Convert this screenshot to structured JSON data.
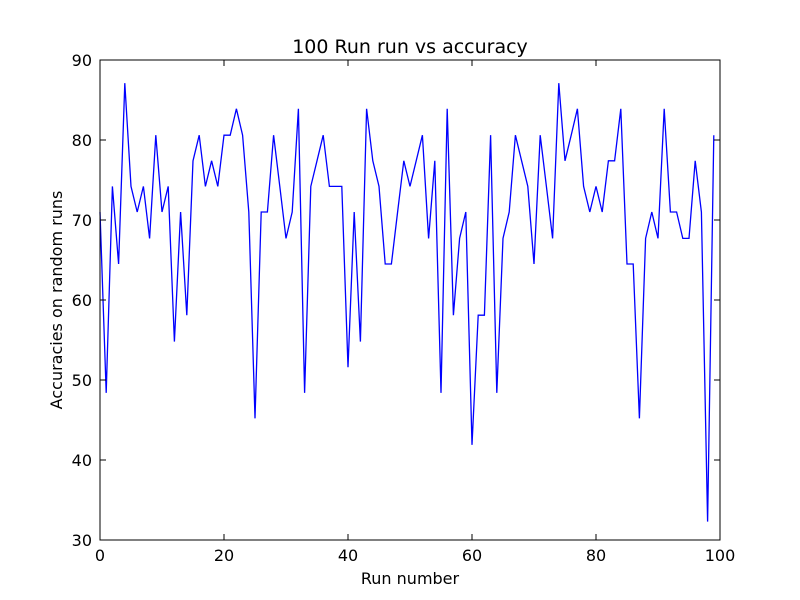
{
  "chart_data": {
    "type": "line",
    "title": "100 Run run vs accuracy",
    "xlabel": "Run number",
    "ylabel": "Accuracies on random runs",
    "xlim": [
      0,
      100
    ],
    "ylim": [
      30,
      90
    ],
    "xticks": [
      "0",
      "20",
      "40",
      "60",
      "80",
      "100"
    ],
    "yticks": [
      "30",
      "40",
      "50",
      "60",
      "70",
      "80",
      "90"
    ],
    "grid": false,
    "series": [
      {
        "color": "#0000ff",
        "x": [
          0,
          1,
          2,
          3,
          4,
          5,
          6,
          7,
          8,
          9,
          10,
          11,
          12,
          13,
          14,
          15,
          16,
          17,
          18,
          19,
          20,
          21,
          22,
          23,
          24,
          25,
          26,
          27,
          28,
          29,
          30,
          31,
          32,
          33,
          34,
          35,
          36,
          37,
          38,
          39,
          40,
          41,
          42,
          43,
          44,
          45,
          46,
          47,
          48,
          49,
          50,
          51,
          52,
          53,
          54,
          55,
          56,
          57,
          58,
          59,
          60,
          61,
          62,
          63,
          64,
          65,
          66,
          67,
          68,
          69,
          70,
          71,
          72,
          73,
          74,
          75,
          76,
          77,
          78,
          79,
          80,
          81,
          82,
          83,
          84,
          85,
          86,
          87,
          88,
          89,
          90,
          91,
          92,
          93,
          94,
          95,
          96,
          97,
          98,
          99
        ],
        "y": [
          71,
          48.4,
          74.2,
          64.5,
          87.1,
          74.2,
          71,
          74.2,
          67.7,
          80.6,
          71,
          74.2,
          54.8,
          71,
          58.1,
          77.4,
          80.6,
          74.2,
          77.4,
          74.2,
          80.6,
          80.6,
          83.9,
          80.6,
          71,
          45.2,
          71,
          71,
          80.6,
          74.2,
          67.7,
          71,
          83.9,
          48.4,
          74.2,
          77.4,
          80.6,
          74.2,
          74.2,
          74.2,
          51.6,
          71,
          54.8,
          83.9,
          77.4,
          74.2,
          64.5,
          64.5,
          71,
          77.4,
          74.2,
          77.4,
          80.6,
          67.7,
          77.4,
          48.4,
          83.9,
          58.1,
          67.7,
          71,
          41.9,
          58.1,
          58.1,
          80.6,
          48.4,
          67.7,
          71,
          80.6,
          77.4,
          74.2,
          64.5,
          80.6,
          74.2,
          67.7,
          87.1,
          77.4,
          80.6,
          83.9,
          74.2,
          71,
          74.2,
          71,
          77.4,
          77.4,
          83.9,
          64.5,
          64.5,
          45.2,
          67.7,
          71,
          67.7,
          83.9,
          71,
          71,
          67.7,
          67.7,
          77.4,
          71,
          32.3,
          80.6
        ]
      }
    ]
  }
}
